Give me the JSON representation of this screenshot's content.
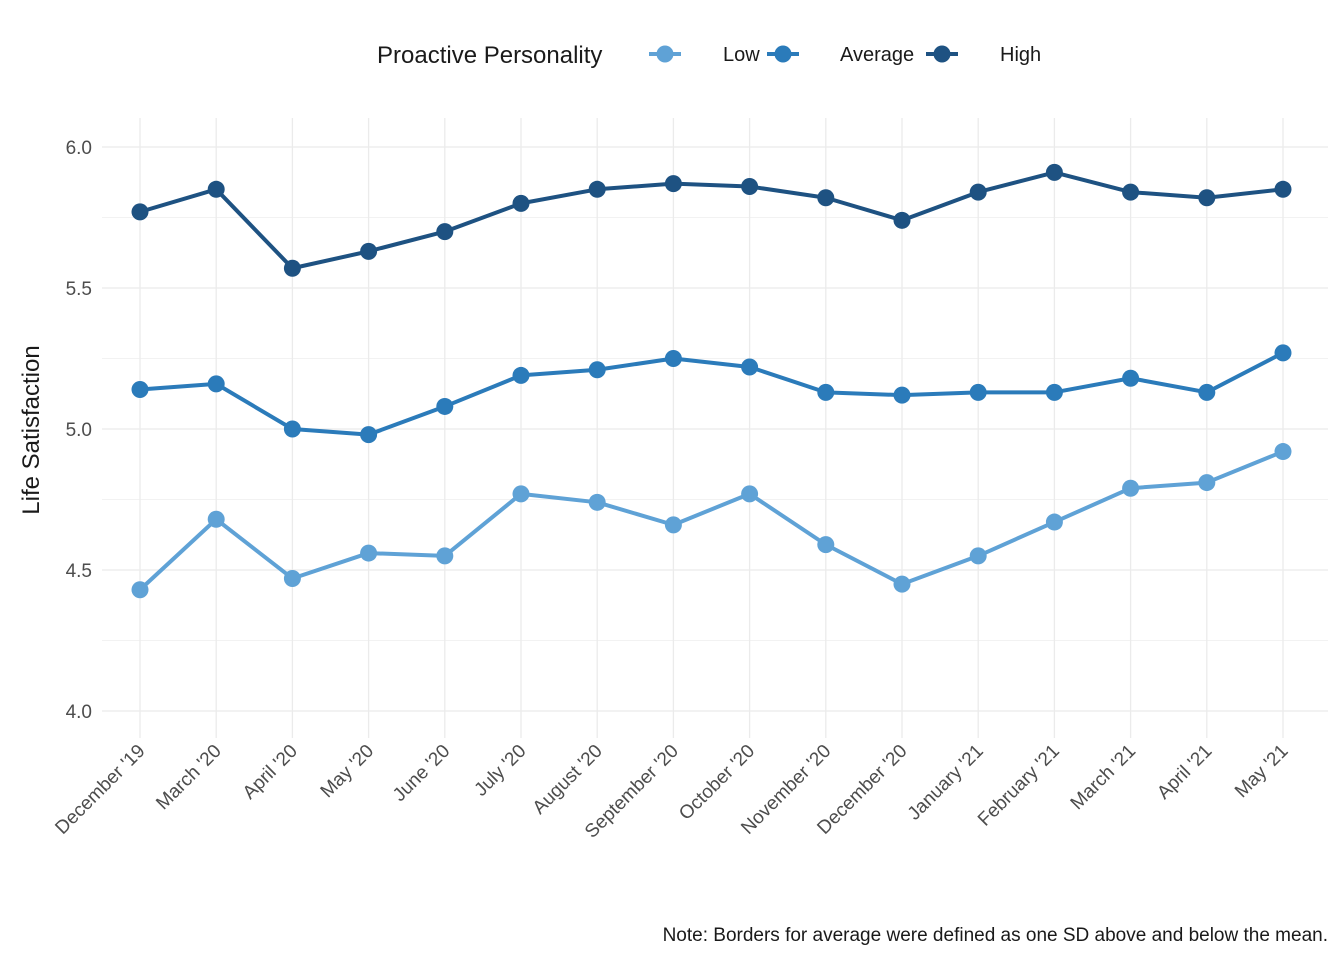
{
  "chart_data": {
    "type": "line",
    "title": "",
    "xlabel": "",
    "ylabel": "Life Satisfaction",
    "ylim": [
      3.9,
      6.1
    ],
    "yticks": [
      "4.0",
      "4.5",
      "5.0",
      "5.5",
      "6.0"
    ],
    "categories": [
      "December '19",
      "March '20",
      "April '20",
      "May '20",
      "June '20",
      "July '20",
      "August '20",
      "September '20",
      "October '20",
      "November '20",
      "December '20",
      "January '21",
      "February '21",
      "March '21",
      "April '21",
      "May '21"
    ],
    "legend": {
      "title": "Proactive Personality",
      "position": "top"
    },
    "series": [
      {
        "name": "Low",
        "color": "#5fa2d6",
        "values": [
          4.43,
          4.68,
          4.47,
          4.56,
          4.55,
          4.77,
          4.74,
          4.66,
          4.77,
          4.59,
          4.45,
          4.55,
          4.67,
          4.79,
          4.81,
          4.92
        ]
      },
      {
        "name": "Average",
        "color": "#2b7bba",
        "values": [
          5.14,
          5.16,
          5.0,
          4.98,
          5.08,
          5.19,
          5.21,
          5.25,
          5.22,
          5.13,
          5.12,
          5.13,
          5.13,
          5.18,
          5.13,
          5.27
        ]
      },
      {
        "name": "High",
        "color": "#1e5282",
        "values": [
          5.77,
          5.85,
          5.57,
          5.63,
          5.7,
          5.8,
          5.85,
          5.87,
          5.86,
          5.82,
          5.74,
          5.84,
          5.91,
          5.84,
          5.82,
          5.85
        ]
      }
    ],
    "grid": true,
    "note": "Note: Borders for average were defined as one SD above and below the mean."
  }
}
